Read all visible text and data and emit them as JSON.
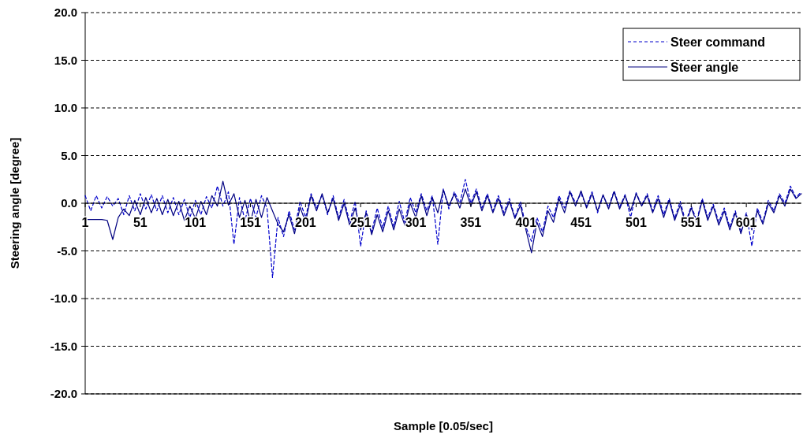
{
  "chart_data": {
    "type": "line",
    "xlabel": "Sample [0.05/sec]",
    "ylabel": "Steering angle [degree]",
    "x": [
      1,
      6,
      11,
      16,
      21,
      26,
      31,
      36,
      41,
      46,
      51,
      56,
      61,
      66,
      71,
      76,
      81,
      86,
      91,
      96,
      101,
      106,
      111,
      116,
      121,
      126,
      131,
      136,
      141,
      146,
      151,
      156,
      161,
      166,
      171,
      176,
      181,
      186,
      191,
      196,
      201,
      206,
      211,
      216,
      221,
      226,
      231,
      236,
      241,
      246,
      251,
      256,
      261,
      266,
      271,
      276,
      281,
      286,
      291,
      296,
      301,
      306,
      311,
      316,
      321,
      326,
      331,
      336,
      341,
      346,
      351,
      356,
      361,
      366,
      371,
      376,
      381,
      386,
      391,
      396,
      401,
      406,
      411,
      416,
      421,
      426,
      431,
      436,
      441,
      446,
      451,
      456,
      461,
      466,
      471,
      476,
      481,
      486,
      491,
      496,
      501,
      506,
      511,
      516,
      521,
      526,
      531,
      536,
      541,
      546,
      551,
      556,
      561,
      566,
      571,
      576,
      581,
      586,
      591,
      596,
      601,
      606,
      611,
      616,
      621,
      626,
      631,
      636,
      641,
      646,
      651
    ],
    "xlim": [
      1,
      651
    ],
    "xticks": [
      1,
      51,
      101,
      151,
      201,
      251,
      301,
      351,
      401,
      451,
      501,
      551,
      601
    ],
    "ylim": [
      -20,
      20
    ],
    "yticks": [
      {
        "value": -20,
        "label": "-20.0"
      },
      {
        "value": -15,
        "label": "-15.0"
      },
      {
        "value": -10,
        "label": "-10.0"
      },
      {
        "value": -5,
        "label": "-5.0"
      },
      {
        "value": 0,
        "label": "0.0"
      },
      {
        "value": 5,
        "label": "5.0"
      },
      {
        "value": 10,
        "label": "10.0"
      },
      {
        "value": 15,
        "label": "15.0"
      },
      {
        "value": 20,
        "label": "20.0"
      }
    ],
    "grid": "y",
    "legend": "top right",
    "marker": "none",
    "series": [
      {
        "name": "Steer command",
        "color": "#0000cc",
        "line_style": "dashed",
        "values": [
          0.8,
          -0.8,
          0.8,
          -0.5,
          0.7,
          -0.3,
          0.5,
          -1.2,
          0.8,
          -0.8,
          1.0,
          -0.6,
          0.9,
          -0.8,
          0.8,
          -1.0,
          0.6,
          -1.2,
          0.4,
          -1.5,
          0.3,
          -1.2,
          0.7,
          -0.5,
          1.8,
          -0.3,
          1.2,
          -4.3,
          0.6,
          -1.8,
          0.5,
          -1.5,
          0.8,
          -0.5,
          -7.8,
          -1.5,
          -3.5,
          -0.8,
          -2.8,
          0.2,
          -1.5,
          1.0,
          -0.5,
          0.9,
          -1.2,
          0.8,
          -1.5,
          0.4,
          -2.0,
          0.2,
          -4.5,
          -0.8,
          -3.0,
          -0.5,
          -2.6,
          -0.3,
          -2.5,
          0.2,
          -2.0,
          0.6,
          -1.0,
          1.0,
          -0.8,
          0.8,
          -4.3,
          1.5,
          -0.6,
          1.2,
          0.0,
          2.5,
          0.0,
          1.5,
          -0.5,
          1.0,
          -0.8,
          0.8,
          -1.0,
          0.5,
          -1.5,
          0.2,
          -2.5,
          -4.0,
          -1.5,
          -3.0,
          -0.3,
          -1.5,
          0.8,
          -0.5,
          1.3,
          0.0,
          1.0,
          -0.3,
          1.2,
          -1.0,
          0.8,
          -0.4,
          1.3,
          -0.4,
          0.9,
          -1.5,
          1.1,
          -0.2,
          1.0,
          -0.8,
          0.8,
          -1.2,
          0.5,
          -1.6,
          0.2,
          -2.0,
          -0.3,
          -1.8,
          0.5,
          -1.5,
          -0.1,
          -2.0,
          -0.5,
          -2.5,
          -0.8,
          -3.0,
          -1.0,
          -4.5,
          -0.5,
          -2.0,
          0.3,
          -0.8,
          1.0,
          0.0,
          1.8,
          0.6,
          1.2
        ]
      },
      {
        "name": "Steer angle",
        "color": "#000080",
        "line_style": "solid",
        "values": [
          -1.7,
          -1.7,
          -1.7,
          -1.7,
          -1.8,
          -3.8,
          -1.5,
          -0.6,
          -1.3,
          0.3,
          -1.2,
          0.6,
          -1.0,
          0.5,
          -1.2,
          0.4,
          -1.3,
          0.2,
          -1.8,
          -0.3,
          -1.6,
          0.2,
          -1.2,
          0.8,
          -0.3,
          2.3,
          -0.2,
          1.0,
          -1.5,
          0.3,
          -2.0,
          0.4,
          -1.5,
          0.6,
          -0.8,
          -2.2,
          -3.0,
          -1.2,
          -3.2,
          -0.4,
          -2.0,
          0.8,
          -0.8,
          1.0,
          -1.0,
          0.5,
          -1.8,
          0.0,
          -2.3,
          -0.5,
          -2.8,
          -1.0,
          -3.3,
          -1.2,
          -3.0,
          -0.8,
          -2.8,
          -0.6,
          -2.3,
          0.0,
          -1.5,
          0.8,
          -1.3,
          0.6,
          -1.0,
          1.4,
          -0.3,
          1.0,
          -0.5,
          1.5,
          -0.3,
          1.2,
          -0.8,
          0.8,
          -1.0,
          0.5,
          -1.3,
          0.2,
          -1.6,
          -0.2,
          -2.8,
          -5.2,
          -2.0,
          -3.5,
          -0.8,
          -2.0,
          0.5,
          -1.0,
          1.2,
          -0.3,
          1.3,
          -0.5,
          1.0,
          -0.8,
          0.9,
          -0.6,
          1.2,
          -0.6,
          0.8,
          -0.8,
          1.0,
          -0.3,
          0.8,
          -1.0,
          0.5,
          -1.5,
          0.3,
          -1.8,
          -0.2,
          -2.2,
          -0.5,
          -2.0,
          0.3,
          -1.8,
          -0.3,
          -2.3,
          -0.8,
          -2.8,
          -1.0,
          -3.2,
          -1.2,
          -2.8,
          -0.8,
          -2.2,
          0.0,
          -1.0,
          0.8,
          -0.3,
          1.5,
          0.5,
          1.0
        ]
      }
    ]
  }
}
